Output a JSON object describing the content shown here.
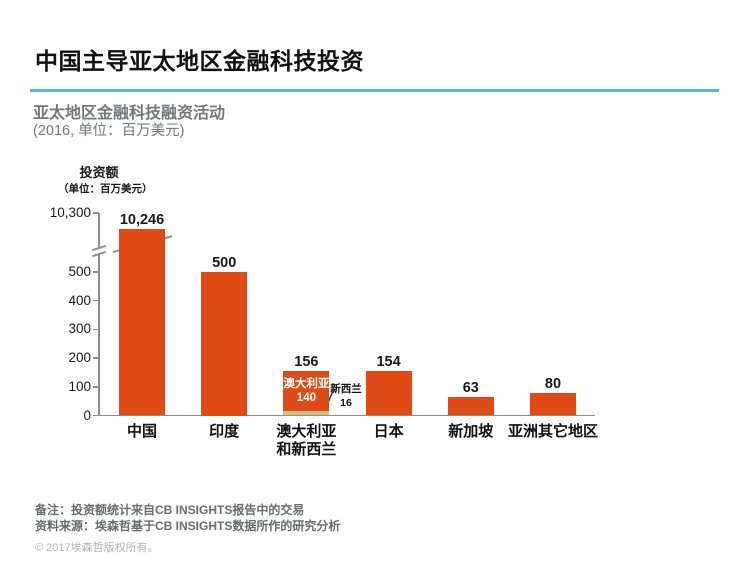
{
  "header": {
    "title": "中国主导亚太地区金融科技投资",
    "subtitle": "亚太地区金融科技融资活动",
    "subtitle_unit": "(2016, 单位：百万美元)"
  },
  "chart_data": {
    "type": "bar",
    "title": "亚太地区金融科技融资活动",
    "year": "2016",
    "unit": "百万美元",
    "y_axis_label": "投资额",
    "y_axis_unit": "（单位：百万美元）",
    "axis_break": true,
    "ylim_display": [
      0,
      560
    ],
    "y_ticks": [
      {
        "label": "10,300",
        "value": 10300
      },
      {
        "label": "500",
        "value": 500
      },
      {
        "label": "400",
        "value": 400
      },
      {
        "label": "300",
        "value": 300
      },
      {
        "label": "200",
        "value": 200
      },
      {
        "label": "100",
        "value": 100
      },
      {
        "label": "0",
        "value": 0
      }
    ],
    "categories": [
      "中国",
      "印度",
      "澳大利亚和新西兰",
      "日本",
      "新加坡",
      "亚洲其它地区"
    ],
    "bars": [
      {
        "id": "china",
        "category_lines": [
          "中国"
        ],
        "value": 10246,
        "value_label": "10,246",
        "truncated": true
      },
      {
        "id": "india",
        "category_lines": [
          "印度"
        ],
        "value": 500,
        "value_label": "500"
      },
      {
        "id": "australia-new-zealand",
        "category_lines": [
          "澳大利亚",
          "和新西兰"
        ],
        "value": 156,
        "value_label": "156",
        "segments": [
          {
            "name": "澳大利亚",
            "value": 140,
            "color": "#E04A15",
            "inner_label_lines": [
              "澳大利亚",
              "140"
            ]
          },
          {
            "name": "新西兰",
            "value": 16,
            "color": "#D9BE83"
          }
        ],
        "annotation_lines": [
          "新西兰",
          "16"
        ]
      },
      {
        "id": "japan",
        "category_lines": [
          "日本"
        ],
        "value": 154,
        "value_label": "154"
      },
      {
        "id": "singapore",
        "category_lines": [
          "新加坡"
        ],
        "value": 63,
        "value_label": "63"
      },
      {
        "id": "other-asia",
        "category_lines": [
          "亚洲其它地区"
        ],
        "value": 80,
        "value_label": "80"
      }
    ],
    "colors": {
      "bar": "#E04A15",
      "segment_nz": "#D9BE83",
      "divider": "#57BCBD"
    }
  },
  "footer": {
    "note": "备注：投资额统计来自CB INSIGHTS报告中的交易",
    "source": "资料来源：埃森哲基于CB INSIGHTS数据所作的研究分析",
    "copyright": "© 2017埃森哲版权所有。"
  }
}
